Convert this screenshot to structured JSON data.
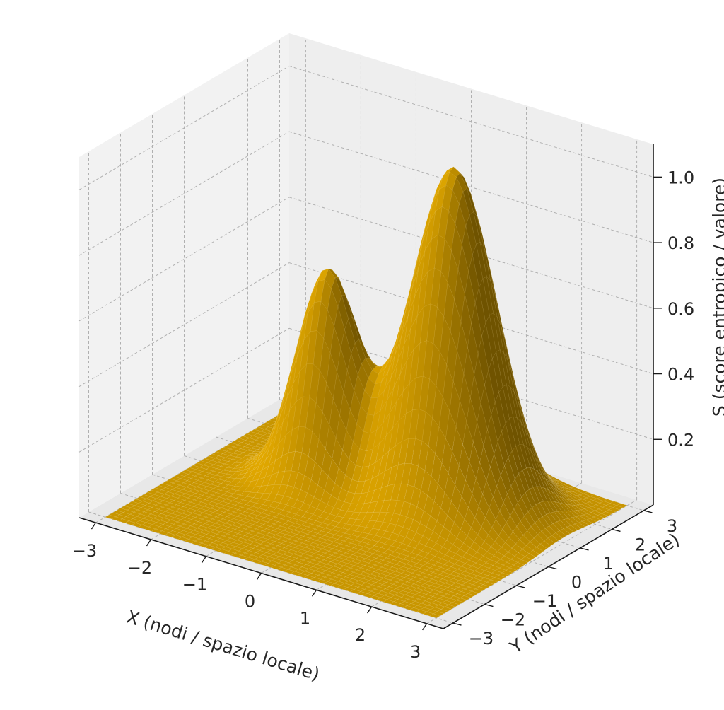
{
  "chart_data": {
    "type": "surface3d",
    "title": "",
    "xlabel": "X (nodi / spazio locale)",
    "ylabel": "Y (nodi / spazio locale)",
    "zlabel": "S (score entropico / valore)",
    "xlim": [
      -3,
      3
    ],
    "ylim": [
      -3,
      3
    ],
    "zlim": [
      0,
      1.1
    ],
    "x_ticks": [
      "−3",
      "−2",
      "−1",
      "0",
      "1",
      "2",
      "3"
    ],
    "y_ticks": [
      "−3",
      "−2",
      "−1",
      "0",
      "1",
      "2",
      "3"
    ],
    "z_ticks": [
      "0.2",
      "0.4",
      "0.6",
      "0.8",
      "1.0"
    ],
    "grid": true,
    "surface_color": "#c99600",
    "peaks": [
      {
        "x": 1.0,
        "y": 1.0,
        "z": 1.0,
        "width": 0.7
      },
      {
        "x": -1.0,
        "y": 0.5,
        "z": 0.65,
        "width": 0.5
      },
      {
        "x": 0.5,
        "y": 2.0,
        "z": 0.2,
        "width": 0.6
      }
    ]
  }
}
